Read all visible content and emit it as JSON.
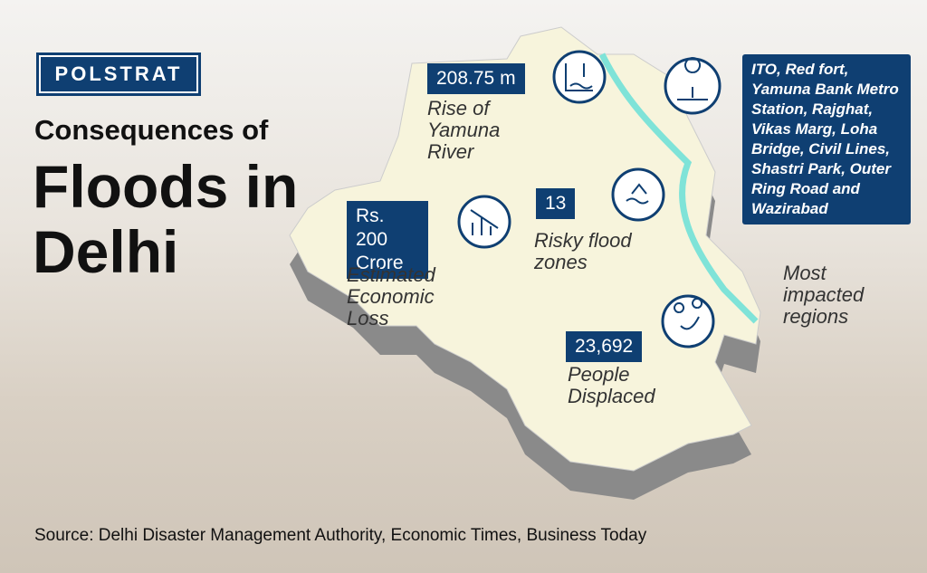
{
  "brand": "POLSTRAT",
  "header": {
    "kicker": "Consequences of",
    "title": "Floods in Delhi"
  },
  "stats": [
    {
      "value": "208.75 m",
      "label": "Rise of Yamuna River"
    },
    {
      "value": "Rs. 200 Crore",
      "label": "Estimated Economic Loss"
    },
    {
      "value": "13",
      "label": "Risky flood zones"
    },
    {
      "value": "23,692",
      "label": "People Displaced"
    },
    {
      "value": "ITO, Red fort, Yamuna Bank Metro Station, Rajghat, Vikas Marg, Loha Bridge, Civil Lines, Shastri Park, Outer Ring Road and Wazirabad",
      "label": "Most impacted regions"
    }
  ],
  "source": "Source: Delhi Disaster Management Authority, Economic Times, Business Today"
}
